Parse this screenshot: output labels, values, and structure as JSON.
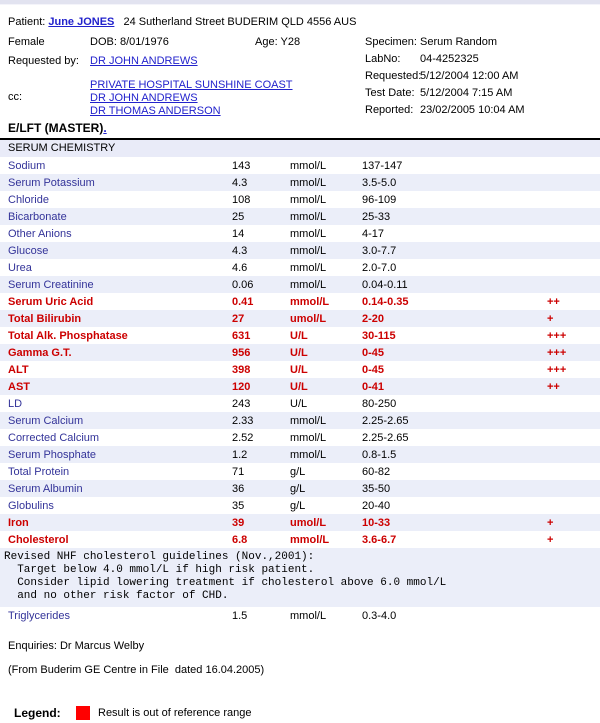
{
  "colors": {
    "abnormal_text": "#cc0000",
    "legend_swatch": "#ff0000",
    "analyte_link": "#333399",
    "hyperlink": "#2222cc",
    "row_alt_bg": "#ebeef9"
  },
  "header": {
    "patient_label": "Patient:",
    "patient_name": "June JONES",
    "patient_address": "24 Sutherland Street BUDERIM QLD 4556 AUS",
    "sex": "Female",
    "dob": "DOB: 8/01/1976",
    "age": "Age: Y28",
    "requested_by_label": "Requested by:",
    "requested_by": "DR JOHN ANDREWS",
    "cc_label": "cc:",
    "cc_list": [
      "PRIVATE HOSPITAL SUNSHINE COAST",
      "DR JOHN ANDREWS",
      "DR THOMAS ANDERSON"
    ],
    "specimen_label": "Specimen:",
    "specimen": "Serum Random",
    "labno_label": "LabNo:",
    "labno": "04-4252325",
    "requested_label": "Requested:",
    "requested": "5/12/2004 12:00 AM",
    "test_date_label": "Test Date:",
    "test_date": "5/12/2004 7:15 AM",
    "reported_label": "Reported:",
    "reported": "23/02/2005 10:04 AM"
  },
  "report": {
    "title": "E/LFT (MASTER)",
    "title_suffix": ".",
    "section": "SERUM CHEMISTRY",
    "results": [
      {
        "name": "Sodium",
        "value": "143",
        "units": "mmol/L",
        "range": "137-147",
        "flag": "",
        "abnormal": false
      },
      {
        "name": "Serum Potassium",
        "value": "4.3",
        "units": "mmol/L",
        "range": "3.5-5.0",
        "flag": "",
        "abnormal": false
      },
      {
        "name": "Chloride",
        "value": "108",
        "units": "mmol/L",
        "range": "96-109",
        "flag": "",
        "abnormal": false
      },
      {
        "name": "Bicarbonate",
        "value": "25",
        "units": "mmol/L",
        "range": "25-33",
        "flag": "",
        "abnormal": false
      },
      {
        "name": "Other Anions",
        "value": "14",
        "units": "mmol/L",
        "range": "4-17",
        "flag": "",
        "abnormal": false
      },
      {
        "name": "Glucose",
        "value": "4.3",
        "units": "mmol/L",
        "range": "3.0-7.7",
        "flag": "",
        "abnormal": false
      },
      {
        "name": "Urea",
        "value": "4.6",
        "units": "mmol/L",
        "range": "2.0-7.0",
        "flag": "",
        "abnormal": false
      },
      {
        "name": "Serum Creatinine",
        "value": "0.06",
        "units": "mmol/L",
        "range": "0.04-0.11",
        "flag": "",
        "abnormal": false
      },
      {
        "name": "Serum Uric Acid",
        "value": "0.41",
        "units": "mmol/L",
        "range": "0.14-0.35",
        "flag": "++",
        "abnormal": true
      },
      {
        "name": "Total Bilirubin",
        "value": "27",
        "units": "umol/L",
        "range": "2-20",
        "flag": "+",
        "abnormal": true
      },
      {
        "name": "Total Alk. Phosphatase",
        "value": "631",
        "units": "U/L",
        "range": "30-115",
        "flag": "+++",
        "abnormal": true
      },
      {
        "name": "Gamma G.T.",
        "value": "956",
        "units": "U/L",
        "range": "0-45",
        "flag": "+++",
        "abnormal": true
      },
      {
        "name": "ALT",
        "value": "398",
        "units": "U/L",
        "range": "0-45",
        "flag": "+++",
        "abnormal": true
      },
      {
        "name": "AST",
        "value": "120",
        "units": "U/L",
        "range": "0-41",
        "flag": "++",
        "abnormal": true
      },
      {
        "name": "LD",
        "value": "243",
        "units": "U/L",
        "range": "80-250",
        "flag": "",
        "abnormal": false
      },
      {
        "name": "Serum Calcium",
        "value": "2.33",
        "units": "mmol/L",
        "range": "2.25-2.65",
        "flag": "",
        "abnormal": false
      },
      {
        "name": "Corrected Calcium",
        "value": "2.52",
        "units": "mmol/L",
        "range": "2.25-2.65",
        "flag": "",
        "abnormal": false
      },
      {
        "name": "Serum Phosphate",
        "value": "1.2",
        "units": "mmol/L",
        "range": "0.8-1.5",
        "flag": "",
        "abnormal": false
      },
      {
        "name": "Total Protein",
        "value": "71",
        "units": "g/L",
        "range": "60-82",
        "flag": "",
        "abnormal": false
      },
      {
        "name": "Serum Albumin",
        "value": "36",
        "units": "g/L",
        "range": "35-50",
        "flag": "",
        "abnormal": false
      },
      {
        "name": "Globulins",
        "value": "35",
        "units": "g/L",
        "range": "20-40",
        "flag": "",
        "abnormal": false
      },
      {
        "name": "Iron",
        "value": "39",
        "units": "umol/L",
        "range": "10-33",
        "flag": "+",
        "abnormal": true
      },
      {
        "name": "Cholesterol",
        "value": "6.8",
        "units": "mmol/L",
        "range": "3.6-6.7",
        "flag": "+",
        "abnormal": true
      }
    ],
    "comment_lines": [
      "Revised NHF cholesterol guidelines (Nov.,2001):",
      "  Target below 4.0 mmol/L if high risk patient.",
      "  Consider lipid lowering treatment if cholesterol above 6.0 mmol/L",
      "  and no other risk factor of CHD."
    ],
    "post_comment_results": [
      {
        "name": "Triglycerides",
        "value": "1.5",
        "units": "mmol/L",
        "range": "0.3-4.0",
        "flag": "",
        "abnormal": false
      }
    ],
    "enquiries": "Enquiries: Dr Marcus Welby",
    "source_note": "(From Buderim GE Centre in File  dated 16.04.2005)"
  },
  "legend": {
    "label": "Legend:",
    "swatch_color": "#ff0000",
    "text": "Result is out of reference range"
  }
}
